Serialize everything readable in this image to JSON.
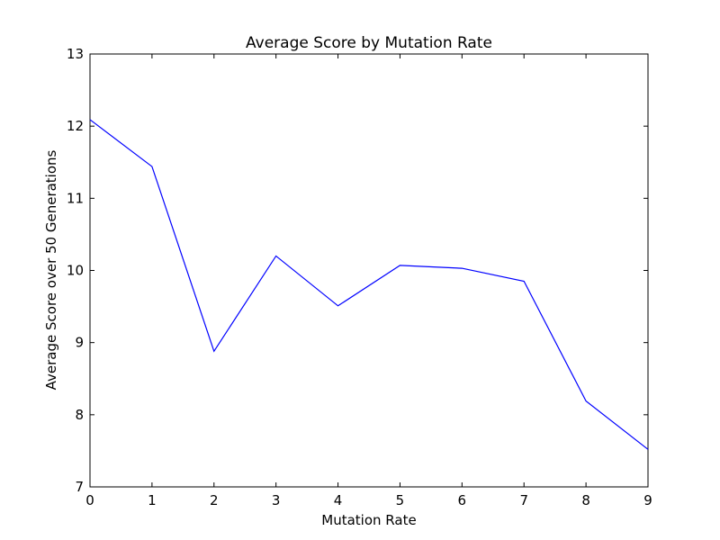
{
  "chart_data": {
    "type": "line",
    "title": "Average Score by Mutation Rate",
    "xlabel": "Mutation Rate",
    "ylabel": "Average Score over 50 Generations",
    "xlim": [
      0,
      9
    ],
    "ylim": [
      7,
      13
    ],
    "xticks": [
      0,
      1,
      2,
      3,
      4,
      5,
      6,
      7,
      8,
      9
    ],
    "yticks": [
      7,
      8,
      9,
      10,
      11,
      12,
      13
    ],
    "grid": false,
    "series": [
      {
        "color": "#0000ff",
        "x": [
          0,
          1,
          2,
          3,
          4,
          5,
          6,
          7,
          8,
          9
        ],
        "y": [
          12.09,
          11.44,
          8.88,
          10.2,
          9.51,
          10.07,
          10.03,
          9.85,
          8.19,
          7.52
        ]
      }
    ]
  }
}
